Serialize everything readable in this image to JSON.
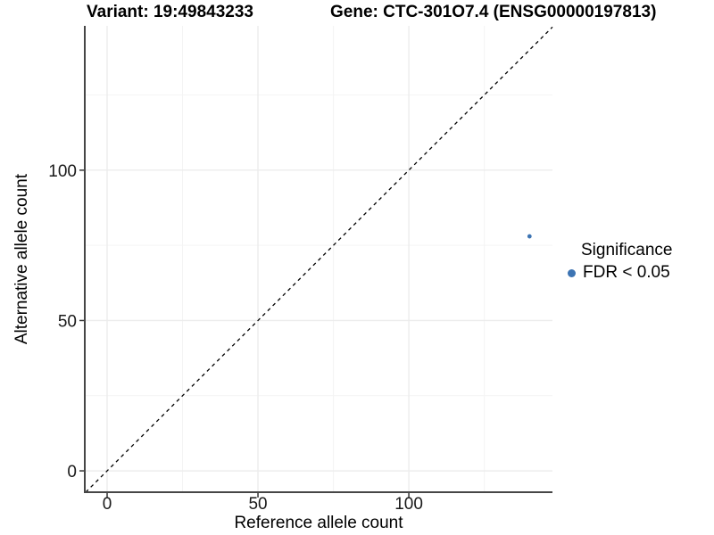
{
  "titles": {
    "variant": "Variant: 19:49843233",
    "gene": "Gene: CTC-301O7.4 (ENSG00000197813)"
  },
  "axes": {
    "x_label": "Reference allele count",
    "y_label": "Alternative allele count"
  },
  "legend": {
    "title": "Significance",
    "items": [
      {
        "label": "FDR < 0.05",
        "color": "#3D74B3"
      }
    ]
  },
  "chart_data": {
    "type": "scatter",
    "title": "Variant: 19:49843233 / Gene: CTC-301O7.4 (ENSG00000197813)",
    "xlabel": "Reference allele count",
    "ylabel": "Alternative allele count",
    "series": [
      {
        "name": "FDR < 0.05",
        "color": "#3D74B3",
        "points": [
          {
            "x": 140,
            "y": 78
          }
        ]
      }
    ],
    "x_ticks": [
      0,
      50,
      100
    ],
    "y_ticks": [
      0,
      50,
      100
    ],
    "x_minor_ticks": [
      25,
      75,
      125
    ],
    "y_minor_ticks": [
      25,
      75,
      125
    ],
    "x_range": [
      -7.4,
      147.6
    ],
    "y_range": [
      -7.1,
      148.0
    ],
    "reference_line": {
      "type": "identity",
      "style": "dashed",
      "color": "#000000"
    },
    "grid": "on",
    "legend_position": "right",
    "point_radius_px": 2.4,
    "legend_dot_radius_px": 4.5,
    "colors": {
      "point": "#3D74B3",
      "axis_line": "#464646",
      "major_grid": "#ececec",
      "minor_grid": "#f4f4f4",
      "tick_mark": "#333333"
    }
  }
}
